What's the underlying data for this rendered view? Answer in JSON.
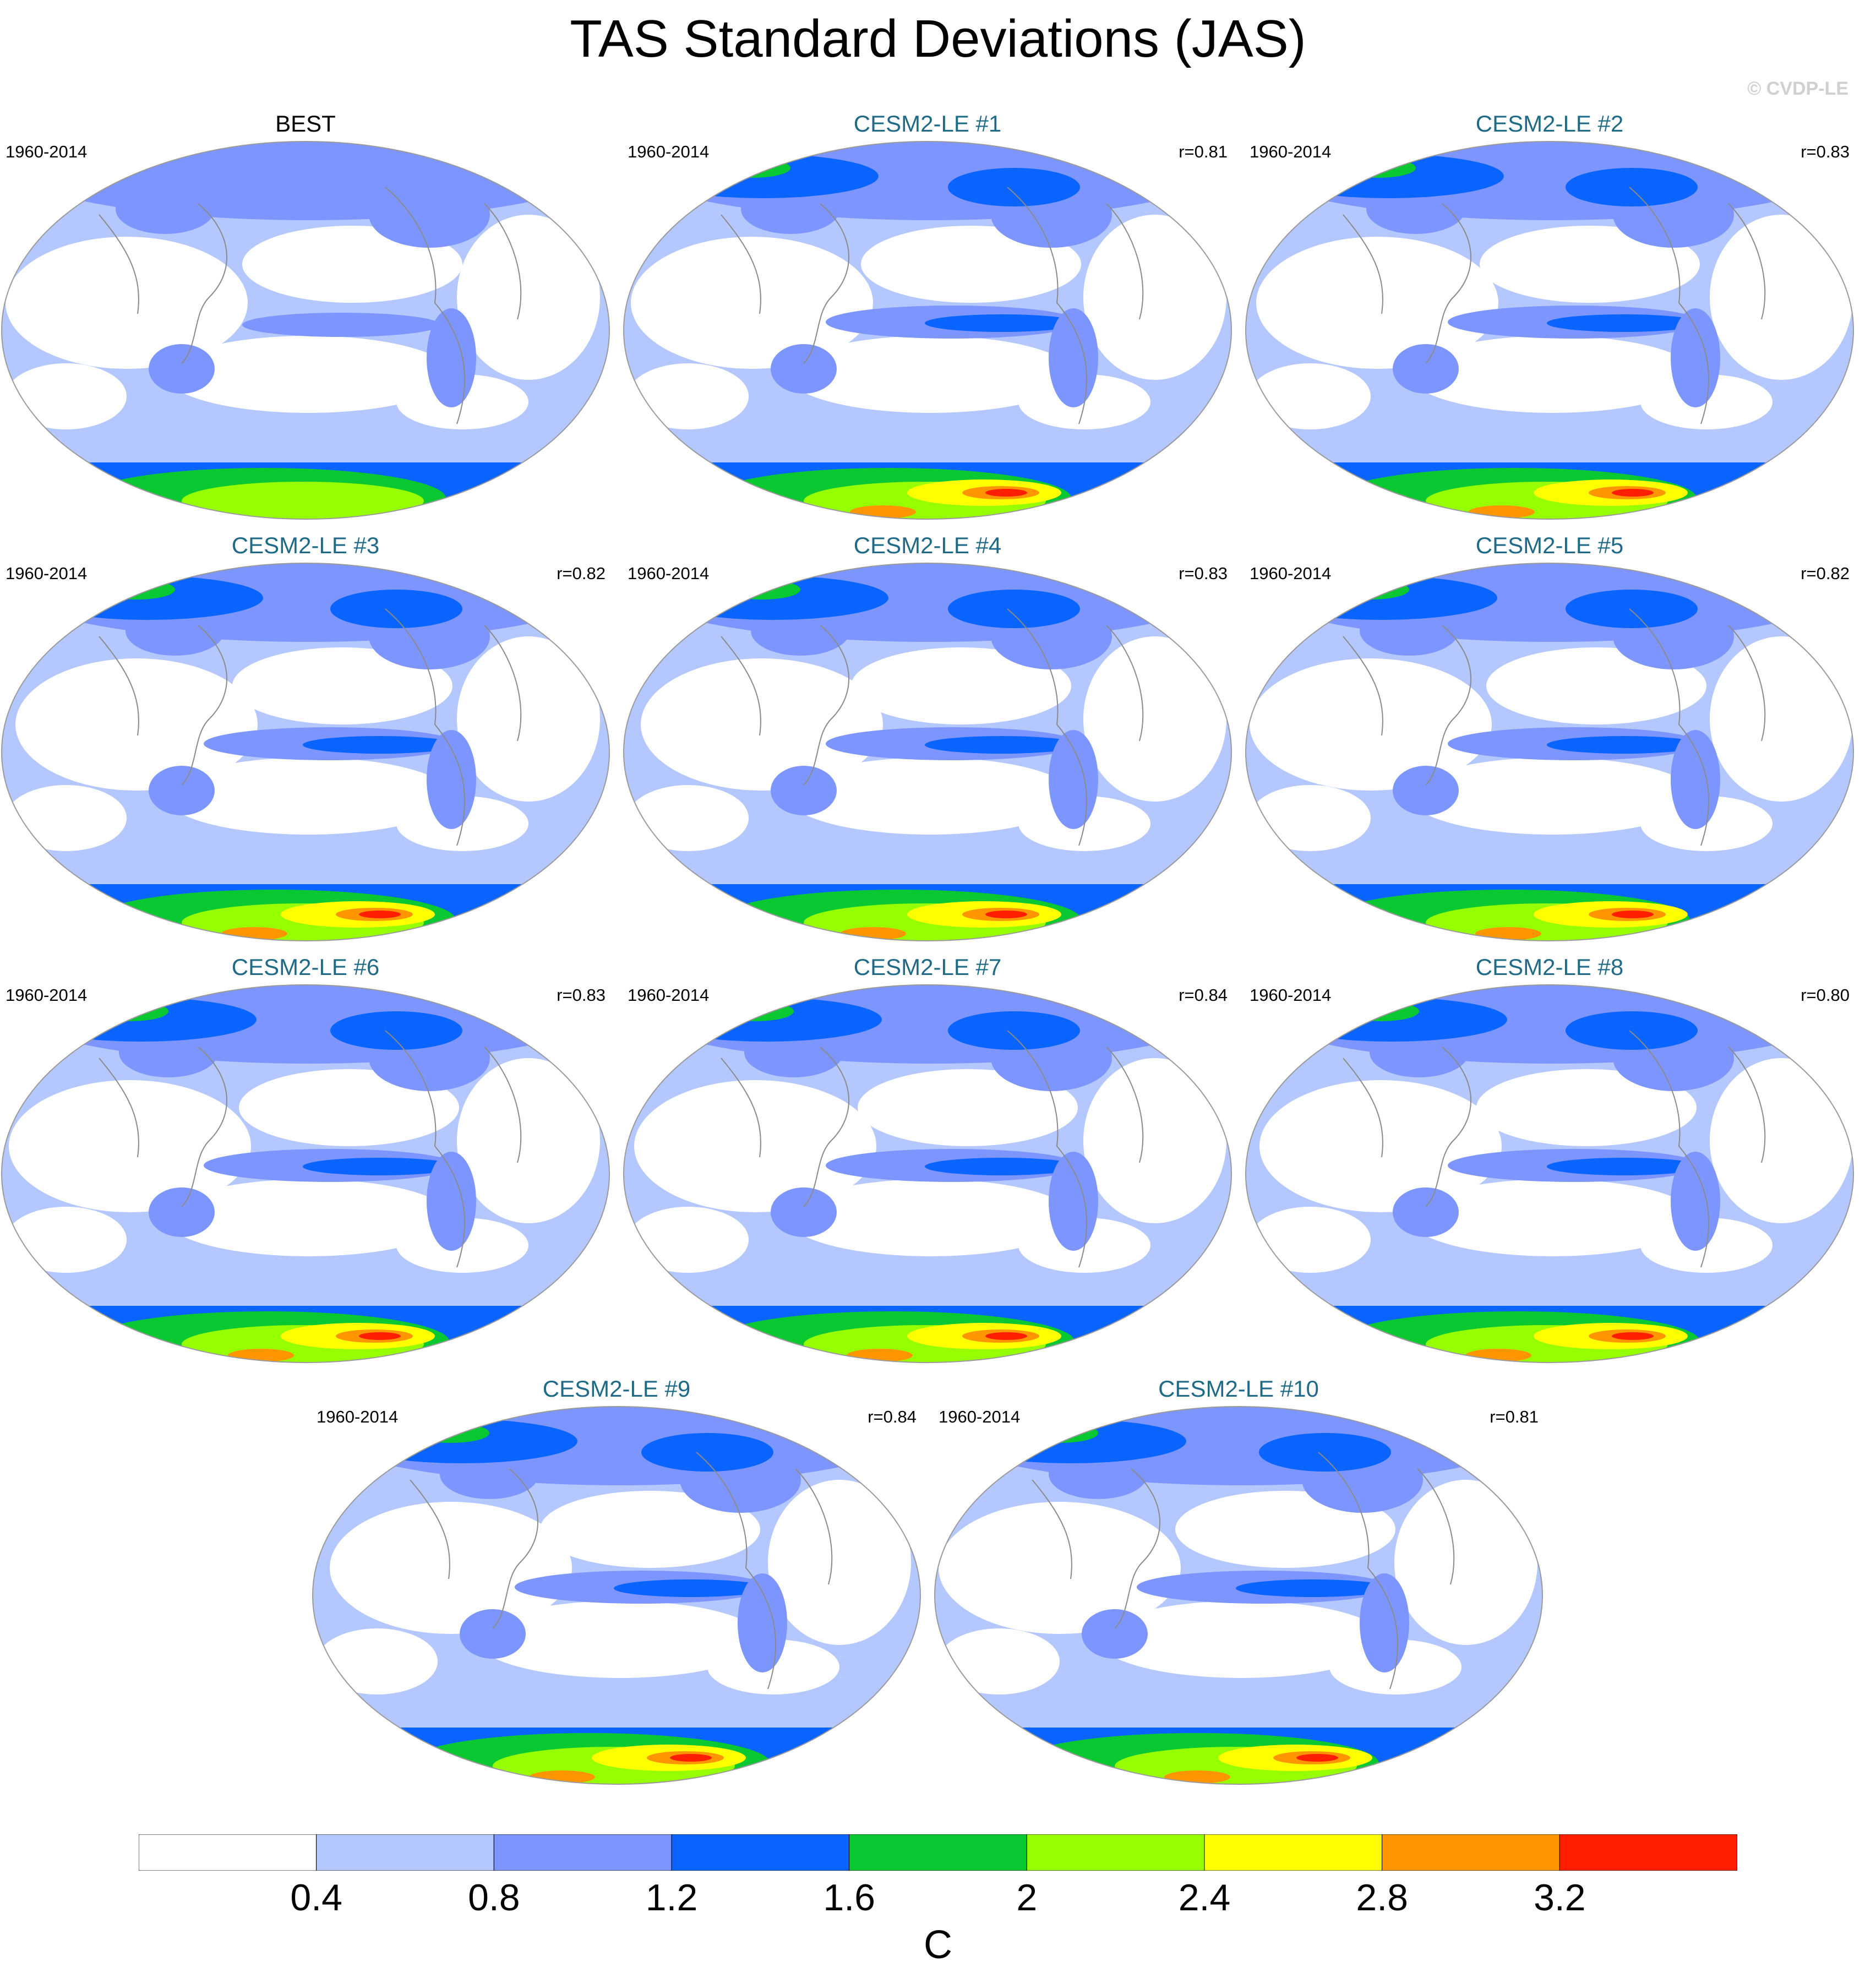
{
  "title": "TAS Standard Deviations (JAS)",
  "credit": "© CVDP-LE",
  "panels": [
    {
      "label": "BEST",
      "kind": "obs",
      "period": "1960-2014",
      "r": "",
      "variant": 0
    },
    {
      "label": "CESM2-LE #1",
      "kind": "model",
      "period": "1960-2014",
      "r": "r=0.81",
      "variant": 1
    },
    {
      "label": "CESM2-LE #2",
      "kind": "model",
      "period": "1960-2014",
      "r": "r=0.83",
      "variant": 2
    },
    {
      "label": "CESM2-LE #3",
      "kind": "model",
      "period": "1960-2014",
      "r": "r=0.82",
      "variant": 3
    },
    {
      "label": "CESM2-LE #4",
      "kind": "model",
      "period": "1960-2014",
      "r": "r=0.83",
      "variant": 4
    },
    {
      "label": "CESM2-LE #5",
      "kind": "model",
      "period": "1960-2014",
      "r": "r=0.82",
      "variant": 5
    },
    {
      "label": "CESM2-LE #6",
      "kind": "model",
      "period": "1960-2014",
      "r": "r=0.83",
      "variant": 6
    },
    {
      "label": "CESM2-LE #7",
      "kind": "model",
      "period": "1960-2014",
      "r": "r=0.84",
      "variant": 7
    },
    {
      "label": "CESM2-LE #8",
      "kind": "model",
      "period": "1960-2014",
      "r": "r=0.80",
      "variant": 8
    },
    {
      "label": "CESM2-LE #9",
      "kind": "model",
      "period": "1960-2014",
      "r": "r=0.84",
      "variant": 9
    },
    {
      "label": "CESM2-LE #10",
      "kind": "model",
      "period": "1960-2014",
      "r": "r=0.81",
      "variant": 10
    }
  ],
  "colorbar": {
    "colors": [
      "#ffffff",
      "#b4c8ff",
      "#7d96ff",
      "#0a64ff",
      "#0ac832",
      "#96ff00",
      "#ffff00",
      "#ff9600",
      "#ff1e00"
    ],
    "labels": [
      "0.4",
      "0.8",
      "1.2",
      "1.6",
      "2",
      "2.4",
      "2.8",
      "3.2"
    ],
    "units": "C"
  }
}
